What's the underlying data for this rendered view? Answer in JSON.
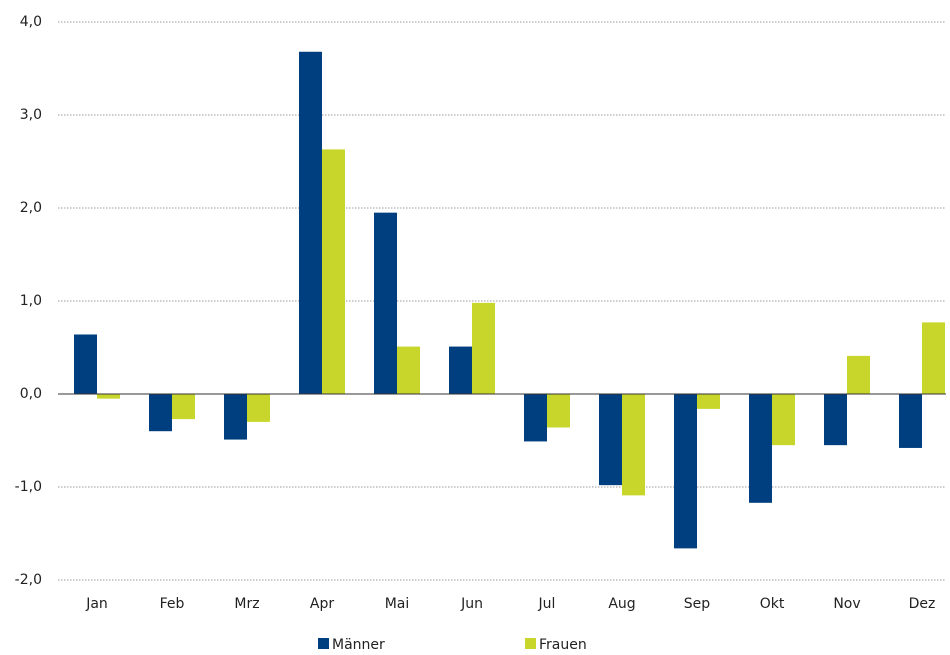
{
  "chart_data": {
    "type": "bar",
    "categories": [
      "Jan",
      "Feb",
      "Mrz",
      "Apr",
      "Mai",
      "Jun",
      "Jul",
      "Aug",
      "Sep",
      "Okt",
      "Nov",
      "Dez"
    ],
    "series": [
      {
        "name": "Männer",
        "color": "#003f7f",
        "values": [
          0.64,
          -0.4,
          -0.49,
          3.68,
          1.95,
          0.51,
          -0.51,
          -0.98,
          -1.66,
          -1.17,
          -0.55,
          -0.58
        ]
      },
      {
        "name": "Frauen",
        "color": "#c8d62b",
        "values": [
          -0.05,
          -0.27,
          -0.3,
          2.63,
          0.51,
          0.98,
          -0.36,
          -1.09,
          -0.16,
          -0.55,
          0.41,
          0.77
        ]
      }
    ],
    "ylim": [
      -2,
      4
    ],
    "yticks": [
      {
        "value": -2,
        "label": "-2,0"
      },
      {
        "value": -1,
        "label": "-1,0"
      },
      {
        "value": 0,
        "label": "0,0"
      },
      {
        "value": 1,
        "label": "1,0"
      },
      {
        "value": 2,
        "label": "2,0"
      },
      {
        "value": 3,
        "label": "3,0"
      },
      {
        "value": 4,
        "label": "4,0"
      }
    ],
    "grid": true,
    "legend": "bottom"
  }
}
